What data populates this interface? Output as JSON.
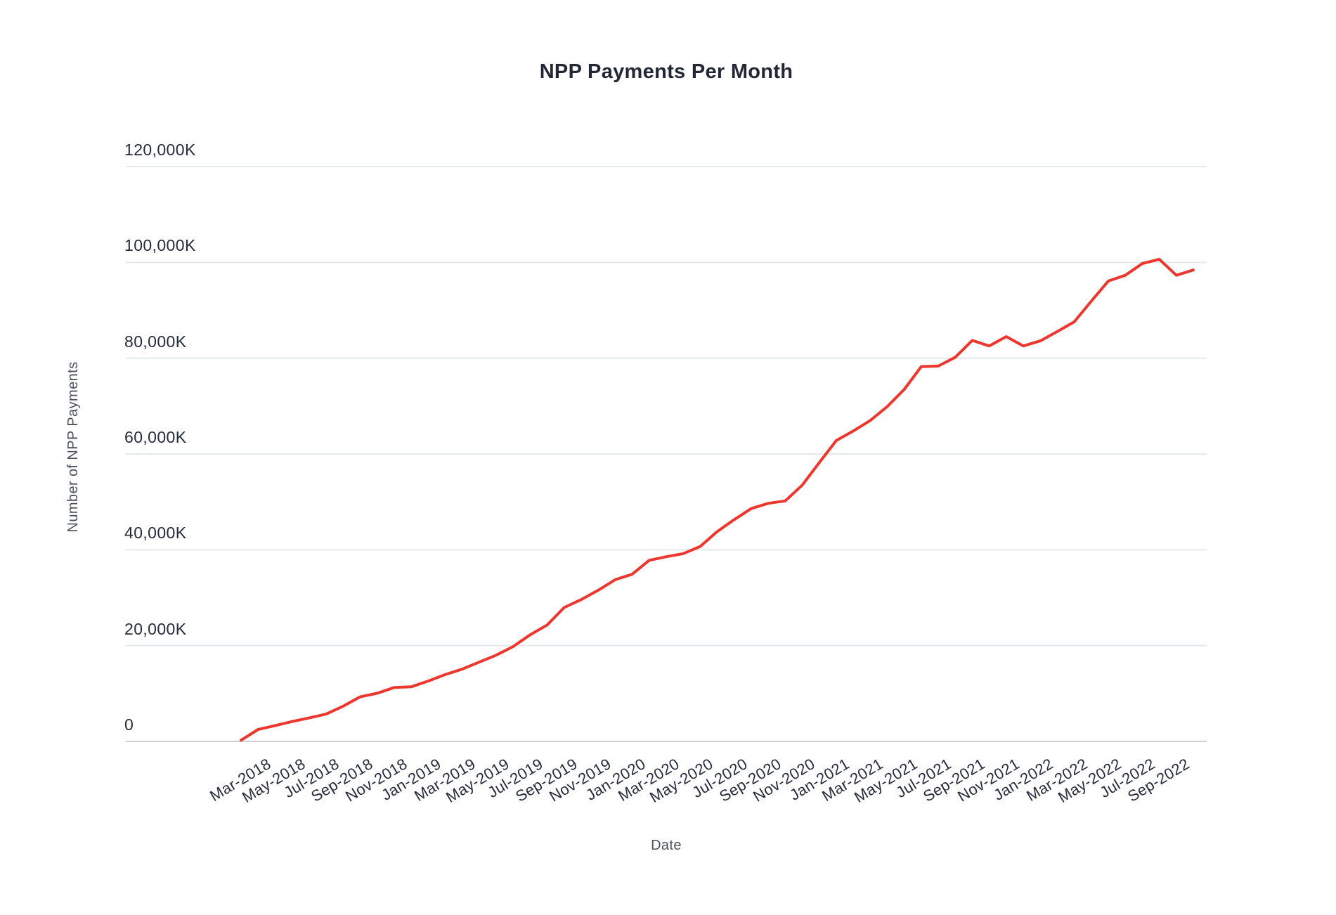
{
  "chart_data": {
    "type": "line",
    "title": "NPP Payments Per Month",
    "xlabel": "Date",
    "ylabel": "Number of NPP Payments",
    "legend": "none",
    "grid": "horizontal",
    "ylim": [
      0,
      120000
    ],
    "y_unit": "K (thousands of payments)",
    "y_ticks": [
      {
        "value": 0,
        "label": "0"
      },
      {
        "value": 20000,
        "label": "20,000K"
      },
      {
        "value": 40000,
        "label": "40,000K"
      },
      {
        "value": 60000,
        "label": "60,000K"
      },
      {
        "value": 80000,
        "label": "80,000K"
      },
      {
        "value": 100000,
        "label": "100,000K"
      },
      {
        "value": 120000,
        "label": "120,000K"
      }
    ],
    "x": [
      "Feb-2018",
      "Mar-2018",
      "Apr-2018",
      "May-2018",
      "Jun-2018",
      "Jul-2018",
      "Aug-2018",
      "Sep-2018",
      "Oct-2018",
      "Nov-2018",
      "Dec-2018",
      "Jan-2019",
      "Feb-2019",
      "Mar-2019",
      "Apr-2019",
      "May-2019",
      "Jun-2019",
      "Jul-2019",
      "Aug-2019",
      "Sep-2019",
      "Oct-2019",
      "Nov-2019",
      "Dec-2019",
      "Jan-2020",
      "Feb-2020",
      "Mar-2020",
      "Apr-2020",
      "May-2020",
      "Jun-2020",
      "Jul-2020",
      "Aug-2020",
      "Sep-2020",
      "Oct-2020",
      "Nov-2020",
      "Dec-2020",
      "Jan-2021",
      "Feb-2021",
      "Mar-2021",
      "Apr-2021",
      "May-2021",
      "Jun-2021",
      "Jul-2021",
      "Aug-2021",
      "Sep-2021",
      "Oct-2021",
      "Nov-2021",
      "Dec-2021",
      "Jan-2022",
      "Feb-2022",
      "Mar-2022",
      "Apr-2022",
      "May-2022",
      "Jun-2022",
      "Jul-2022",
      "Aug-2022",
      "Sep-2022",
      "Oct-2022"
    ],
    "x_tick_labels": [
      "Mar-2018",
      "May-2018",
      "Jul-2018",
      "Sep-2018",
      "Nov-2018",
      "Jan-2019",
      "Mar-2019",
      "May-2019",
      "Jul-2019",
      "Sep-2019",
      "Nov-2019",
      "Jan-2020",
      "Mar-2020",
      "May-2020",
      "Jul-2020",
      "Sep-2020",
      "Nov-2020",
      "Jan-2021",
      "Mar-2021",
      "May-2021",
      "Jul-2021",
      "Sep-2021",
      "Nov-2021",
      "Jan-2022",
      "Mar-2022",
      "May-2022",
      "Jul-2022",
      "Sep-2022"
    ],
    "series": [
      {
        "name": "NPP Payments",
        "values": [
          250,
          2500,
          3300,
          4150,
          4900,
          5700,
          7350,
          9300,
          10050,
          11250,
          11400,
          12600,
          13950,
          15100,
          16550,
          18000,
          19800,
          22250,
          24300,
          27950,
          29600,
          31550,
          33750,
          34900,
          37800,
          38550,
          39200,
          40700,
          43800,
          46300,
          48600,
          49700,
          50200,
          53500,
          58200,
          62800,
          64800,
          67000,
          69900,
          73500,
          78250,
          78350,
          80200,
          83700,
          82550,
          84500,
          82550,
          83600,
          85550,
          87600,
          91900,
          96100,
          97300,
          99750,
          100650,
          97300,
          98400
        ]
      }
    ],
    "colors": {
      "line": "#ed372e",
      "tick_text": "#262b3d",
      "axis_title_text": "#4b5060",
      "gridline": "#e3e9ee",
      "baseline": "#ccd2d9",
      "background": "#ffffff"
    }
  }
}
